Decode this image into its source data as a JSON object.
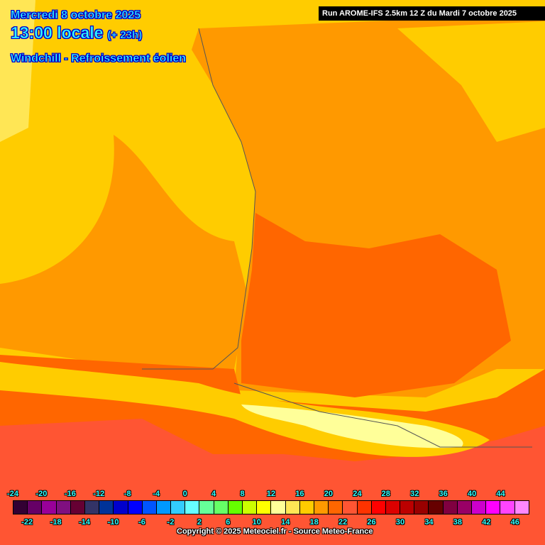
{
  "header": {
    "date": "Mercredi 8 octobre 2025",
    "time": "13:00 locale",
    "lead": "(+ 23h)",
    "parameter": "Windchill - Refroissement éolien",
    "run": "Run AROME-IFS 2.5km 12 Z du Mardi 7 octobre 2025"
  },
  "legend": {
    "top_labels": [
      "-24",
      "-20",
      "-16",
      "-12",
      "-8",
      "-4",
      "0",
      "4",
      "8",
      "12",
      "16",
      "20",
      "24",
      "28",
      "32",
      "36",
      "40",
      "44"
    ],
    "bottom_labels": [
      "-22",
      "-18",
      "-14",
      "-10",
      "-6",
      "-2",
      "2",
      "6",
      "10",
      "14",
      "18",
      "22",
      "26",
      "30",
      "34",
      "38",
      "42",
      "46"
    ],
    "colors": [
      "#330033",
      "#660066",
      "#990099",
      "#801080",
      "#660033",
      "#333366",
      "#003399",
      "#0000cc",
      "#0000ff",
      "#0055ff",
      "#0099ff",
      "#33ccff",
      "#66ffff",
      "#66ff99",
      "#66ff66",
      "#66ff00",
      "#ccff00",
      "#ffff00",
      "#ffff99",
      "#ffe655",
      "#ffcc00",
      "#ff9900",
      "#ff6600",
      "#ff5533",
      "#ff3300",
      "#ff0000",
      "#dd0000",
      "#bb0000",
      "#990000",
      "#660000",
      "#800040",
      "#990066",
      "#cc00cc",
      "#ff00ff",
      "#ff44ff",
      "#ff88ff"
    ]
  },
  "copyright": "Copyright © 2025 Meteociel.fr - Source Meteo-France"
}
